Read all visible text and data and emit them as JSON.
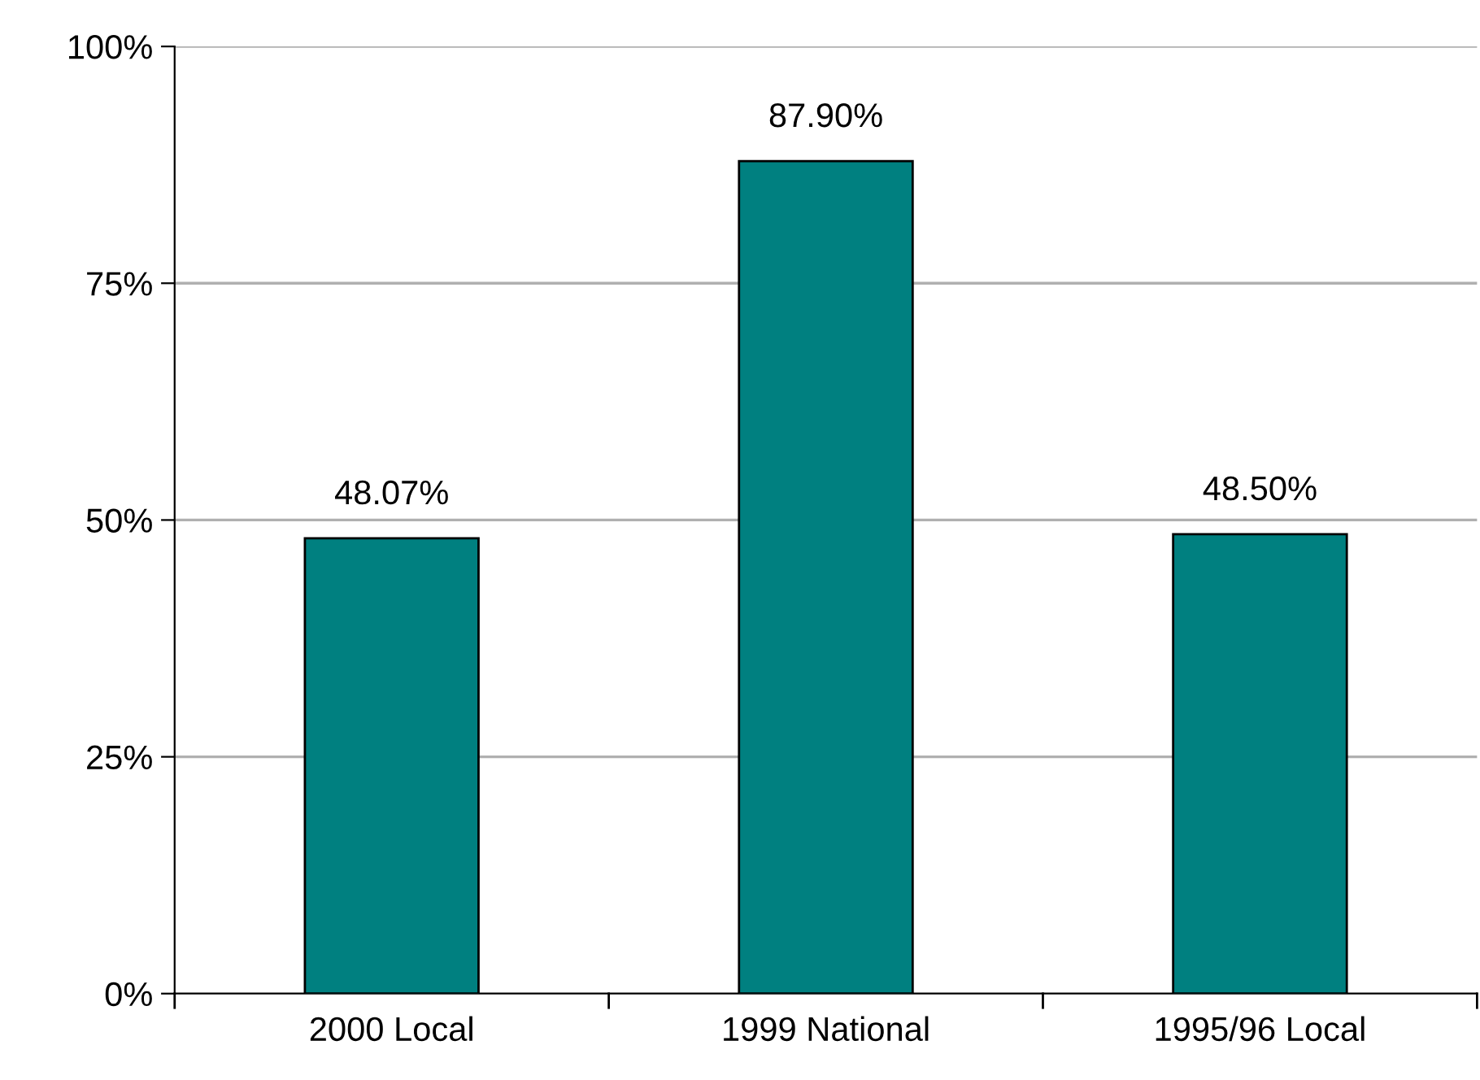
{
  "chart_data": {
    "type": "bar",
    "categories": [
      "2000 Local",
      "1999 National",
      "1995/96 Local"
    ],
    "values": [
      48.07,
      87.9,
      48.5
    ],
    "value_labels": [
      "48.07%",
      "87.90%",
      "48.50%"
    ],
    "color": "#008080",
    "ylim": [
      0,
      100
    ],
    "yticks": [
      {
        "value": 0,
        "label": "0%"
      },
      {
        "value": 25,
        "label": "25%"
      },
      {
        "value": 50,
        "label": "50%"
      },
      {
        "value": 75,
        "label": "75%"
      },
      {
        "value": 100,
        "label": "100%"
      }
    ],
    "grid": "y"
  }
}
